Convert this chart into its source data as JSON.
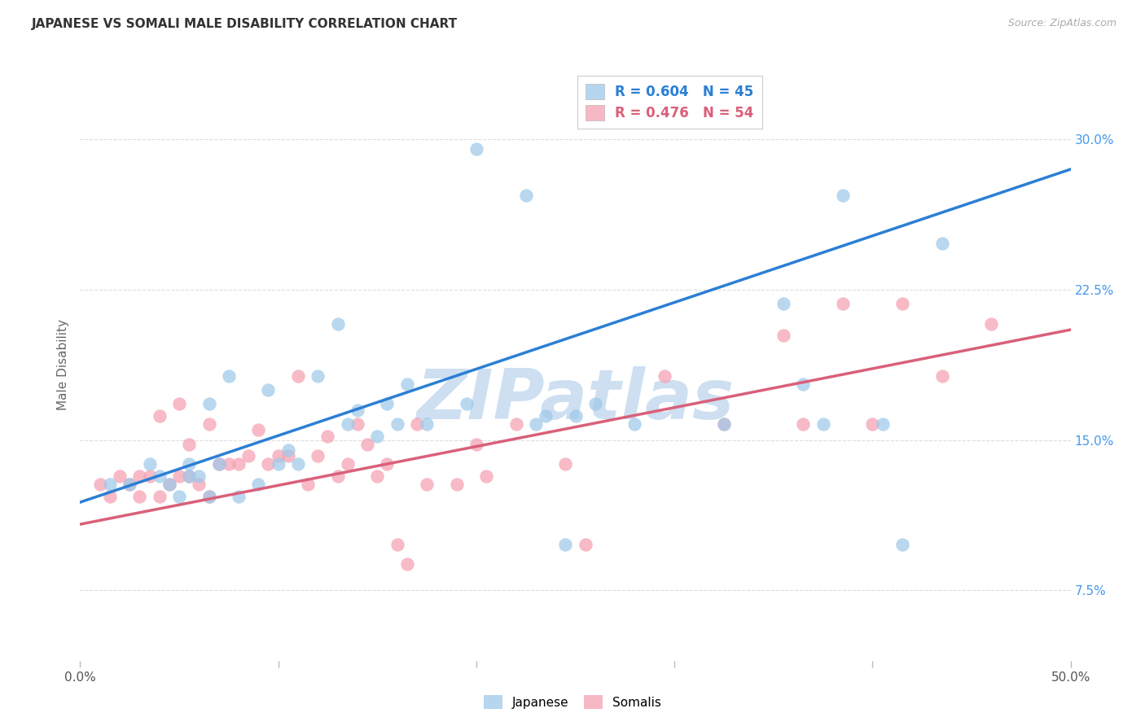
{
  "title": "JAPANESE VS SOMALI MALE DISABILITY CORRELATION CHART",
  "source": "Source: ZipAtlas.com",
  "ylabel": "Male Disability",
  "xlim": [
    0.0,
    0.5
  ],
  "ylim": [
    0.04,
    0.335
  ],
  "ytick_vals": [
    0.075,
    0.15,
    0.225,
    0.3
  ],
  "ytick_labels": [
    "7.5%",
    "15.0%",
    "22.5%",
    "30.0%"
  ],
  "xtick_vals": [
    0.0,
    0.1,
    0.2,
    0.3,
    0.4,
    0.5
  ],
  "xtick_labels": [
    "0.0%",
    "",
    "",
    "",
    "",
    "50.0%"
  ],
  "legend_top_1": "R = 0.604   N = 45",
  "legend_top_2": "R = 0.476   N = 54",
  "legend_top_color_1": "#2B7FD4",
  "legend_top_color_2": "#D9607A",
  "legend_bottom": [
    "Japanese",
    "Somalis"
  ],
  "japanese_color": "#9EC9EA",
  "somali_color": "#F4A0B0",
  "blue_line_color": "#2B7FD4",
  "pink_line_color": "#D9607A",
  "right_ytick_color": "#4499EE",
  "watermark_text": "ZIPatlas",
  "watermark_color": "#C8DCF0",
  "grid_color": "#DDDDDD",
  "background": "#FFFFFF",
  "blue_line_x0": 0.0,
  "blue_line_y0": 0.119,
  "blue_line_x1": 0.5,
  "blue_line_y1": 0.285,
  "pink_line_x0": 0.0,
  "pink_line_y0": 0.108,
  "pink_line_x1": 0.5,
  "pink_line_y1": 0.205,
  "japanese_x": [
    0.015,
    0.025,
    0.035,
    0.04,
    0.045,
    0.05,
    0.055,
    0.055,
    0.06,
    0.065,
    0.065,
    0.07,
    0.075,
    0.08,
    0.09,
    0.095,
    0.1,
    0.105,
    0.11,
    0.12,
    0.13,
    0.135,
    0.14,
    0.15,
    0.155,
    0.16,
    0.165,
    0.175,
    0.195,
    0.2,
    0.225,
    0.23,
    0.235,
    0.245,
    0.25,
    0.26,
    0.28,
    0.325,
    0.355,
    0.365,
    0.375,
    0.385,
    0.405,
    0.415,
    0.435
  ],
  "japanese_y": [
    0.128,
    0.128,
    0.138,
    0.132,
    0.128,
    0.122,
    0.132,
    0.138,
    0.132,
    0.168,
    0.122,
    0.138,
    0.182,
    0.122,
    0.128,
    0.175,
    0.138,
    0.145,
    0.138,
    0.182,
    0.208,
    0.158,
    0.165,
    0.152,
    0.168,
    0.158,
    0.178,
    0.158,
    0.168,
    0.295,
    0.272,
    0.158,
    0.162,
    0.098,
    0.162,
    0.168,
    0.158,
    0.158,
    0.218,
    0.178,
    0.158,
    0.272,
    0.158,
    0.098,
    0.248
  ],
  "somali_x": [
    0.01,
    0.015,
    0.02,
    0.025,
    0.03,
    0.03,
    0.035,
    0.04,
    0.04,
    0.045,
    0.05,
    0.05,
    0.055,
    0.055,
    0.06,
    0.065,
    0.065,
    0.07,
    0.075,
    0.08,
    0.085,
    0.09,
    0.095,
    0.1,
    0.105,
    0.11,
    0.115,
    0.12,
    0.125,
    0.13,
    0.135,
    0.14,
    0.145,
    0.15,
    0.155,
    0.16,
    0.165,
    0.17,
    0.175,
    0.19,
    0.2,
    0.205,
    0.22,
    0.245,
    0.255,
    0.295,
    0.325,
    0.355,
    0.365,
    0.385,
    0.4,
    0.415,
    0.435,
    0.46
  ],
  "somali_y": [
    0.128,
    0.122,
    0.132,
    0.128,
    0.122,
    0.132,
    0.132,
    0.122,
    0.162,
    0.128,
    0.132,
    0.168,
    0.132,
    0.148,
    0.128,
    0.158,
    0.122,
    0.138,
    0.138,
    0.138,
    0.142,
    0.155,
    0.138,
    0.142,
    0.142,
    0.182,
    0.128,
    0.142,
    0.152,
    0.132,
    0.138,
    0.158,
    0.148,
    0.132,
    0.138,
    0.098,
    0.088,
    0.158,
    0.128,
    0.128,
    0.148,
    0.132,
    0.158,
    0.138,
    0.098,
    0.182,
    0.158,
    0.202,
    0.158,
    0.218,
    0.158,
    0.218,
    0.182,
    0.208
  ]
}
